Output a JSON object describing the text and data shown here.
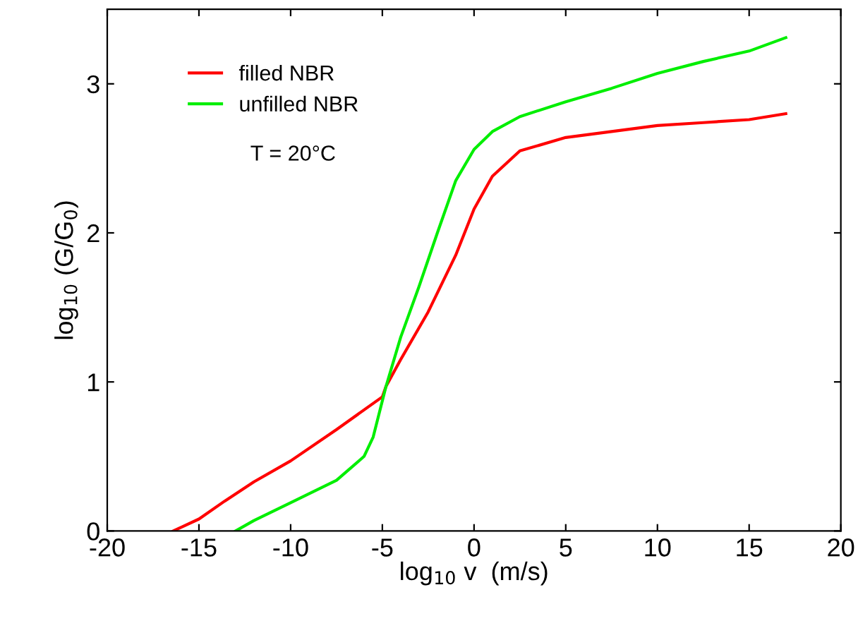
{
  "chart_data": {
    "type": "line",
    "xlabel": "log$_{10}$ v  (m/s)",
    "ylabel": "log$_{10}$ (G/G$_{0}$)",
    "xlim": [
      -20,
      20
    ],
    "xticks": [
      -20,
      -15,
      -10,
      -5,
      0,
      5,
      10,
      15,
      20
    ],
    "ylim": [
      0,
      3.5
    ],
    "yticks": [
      0,
      1,
      2,
      3
    ],
    "grid": false,
    "legend": "top left",
    "marker": "none",
    "line_style": "solid",
    "annotations": [
      "T = 20°C"
    ],
    "series": [
      {
        "name": "filled NBR",
        "color": "#ff0000",
        "x": [
          -16.4,
          -15,
          -13.6,
          -12,
          -10,
          -7.5,
          -5,
          -4.8,
          -4,
          -2.5,
          -1,
          0,
          1,
          2.5,
          5,
          7.5,
          10,
          12.5,
          15,
          17
        ],
        "values": [
          0,
          0.08,
          0.2,
          0.33,
          0.47,
          0.68,
          0.9,
          0.97,
          1.15,
          1.47,
          1.85,
          2.16,
          2.38,
          2.55,
          2.64,
          2.68,
          2.72,
          2.74,
          2.76,
          2.8
        ]
      },
      {
        "name": "unfilled NBR",
        "color": "#00ee00",
        "x": [
          -13,
          -12,
          -10,
          -7.5,
          -6,
          -5.5,
          -4.8,
          -4,
          -3,
          -2,
          -1,
          0,
          1,
          2.5,
          5,
          7.5,
          10,
          12.5,
          15,
          17
        ],
        "values": [
          0,
          0.07,
          0.19,
          0.34,
          0.5,
          0.63,
          0.97,
          1.3,
          1.64,
          2.0,
          2.35,
          2.56,
          2.68,
          2.78,
          2.88,
          2.97,
          3.07,
          3.15,
          3.22,
          3.31
        ]
      }
    ]
  }
}
